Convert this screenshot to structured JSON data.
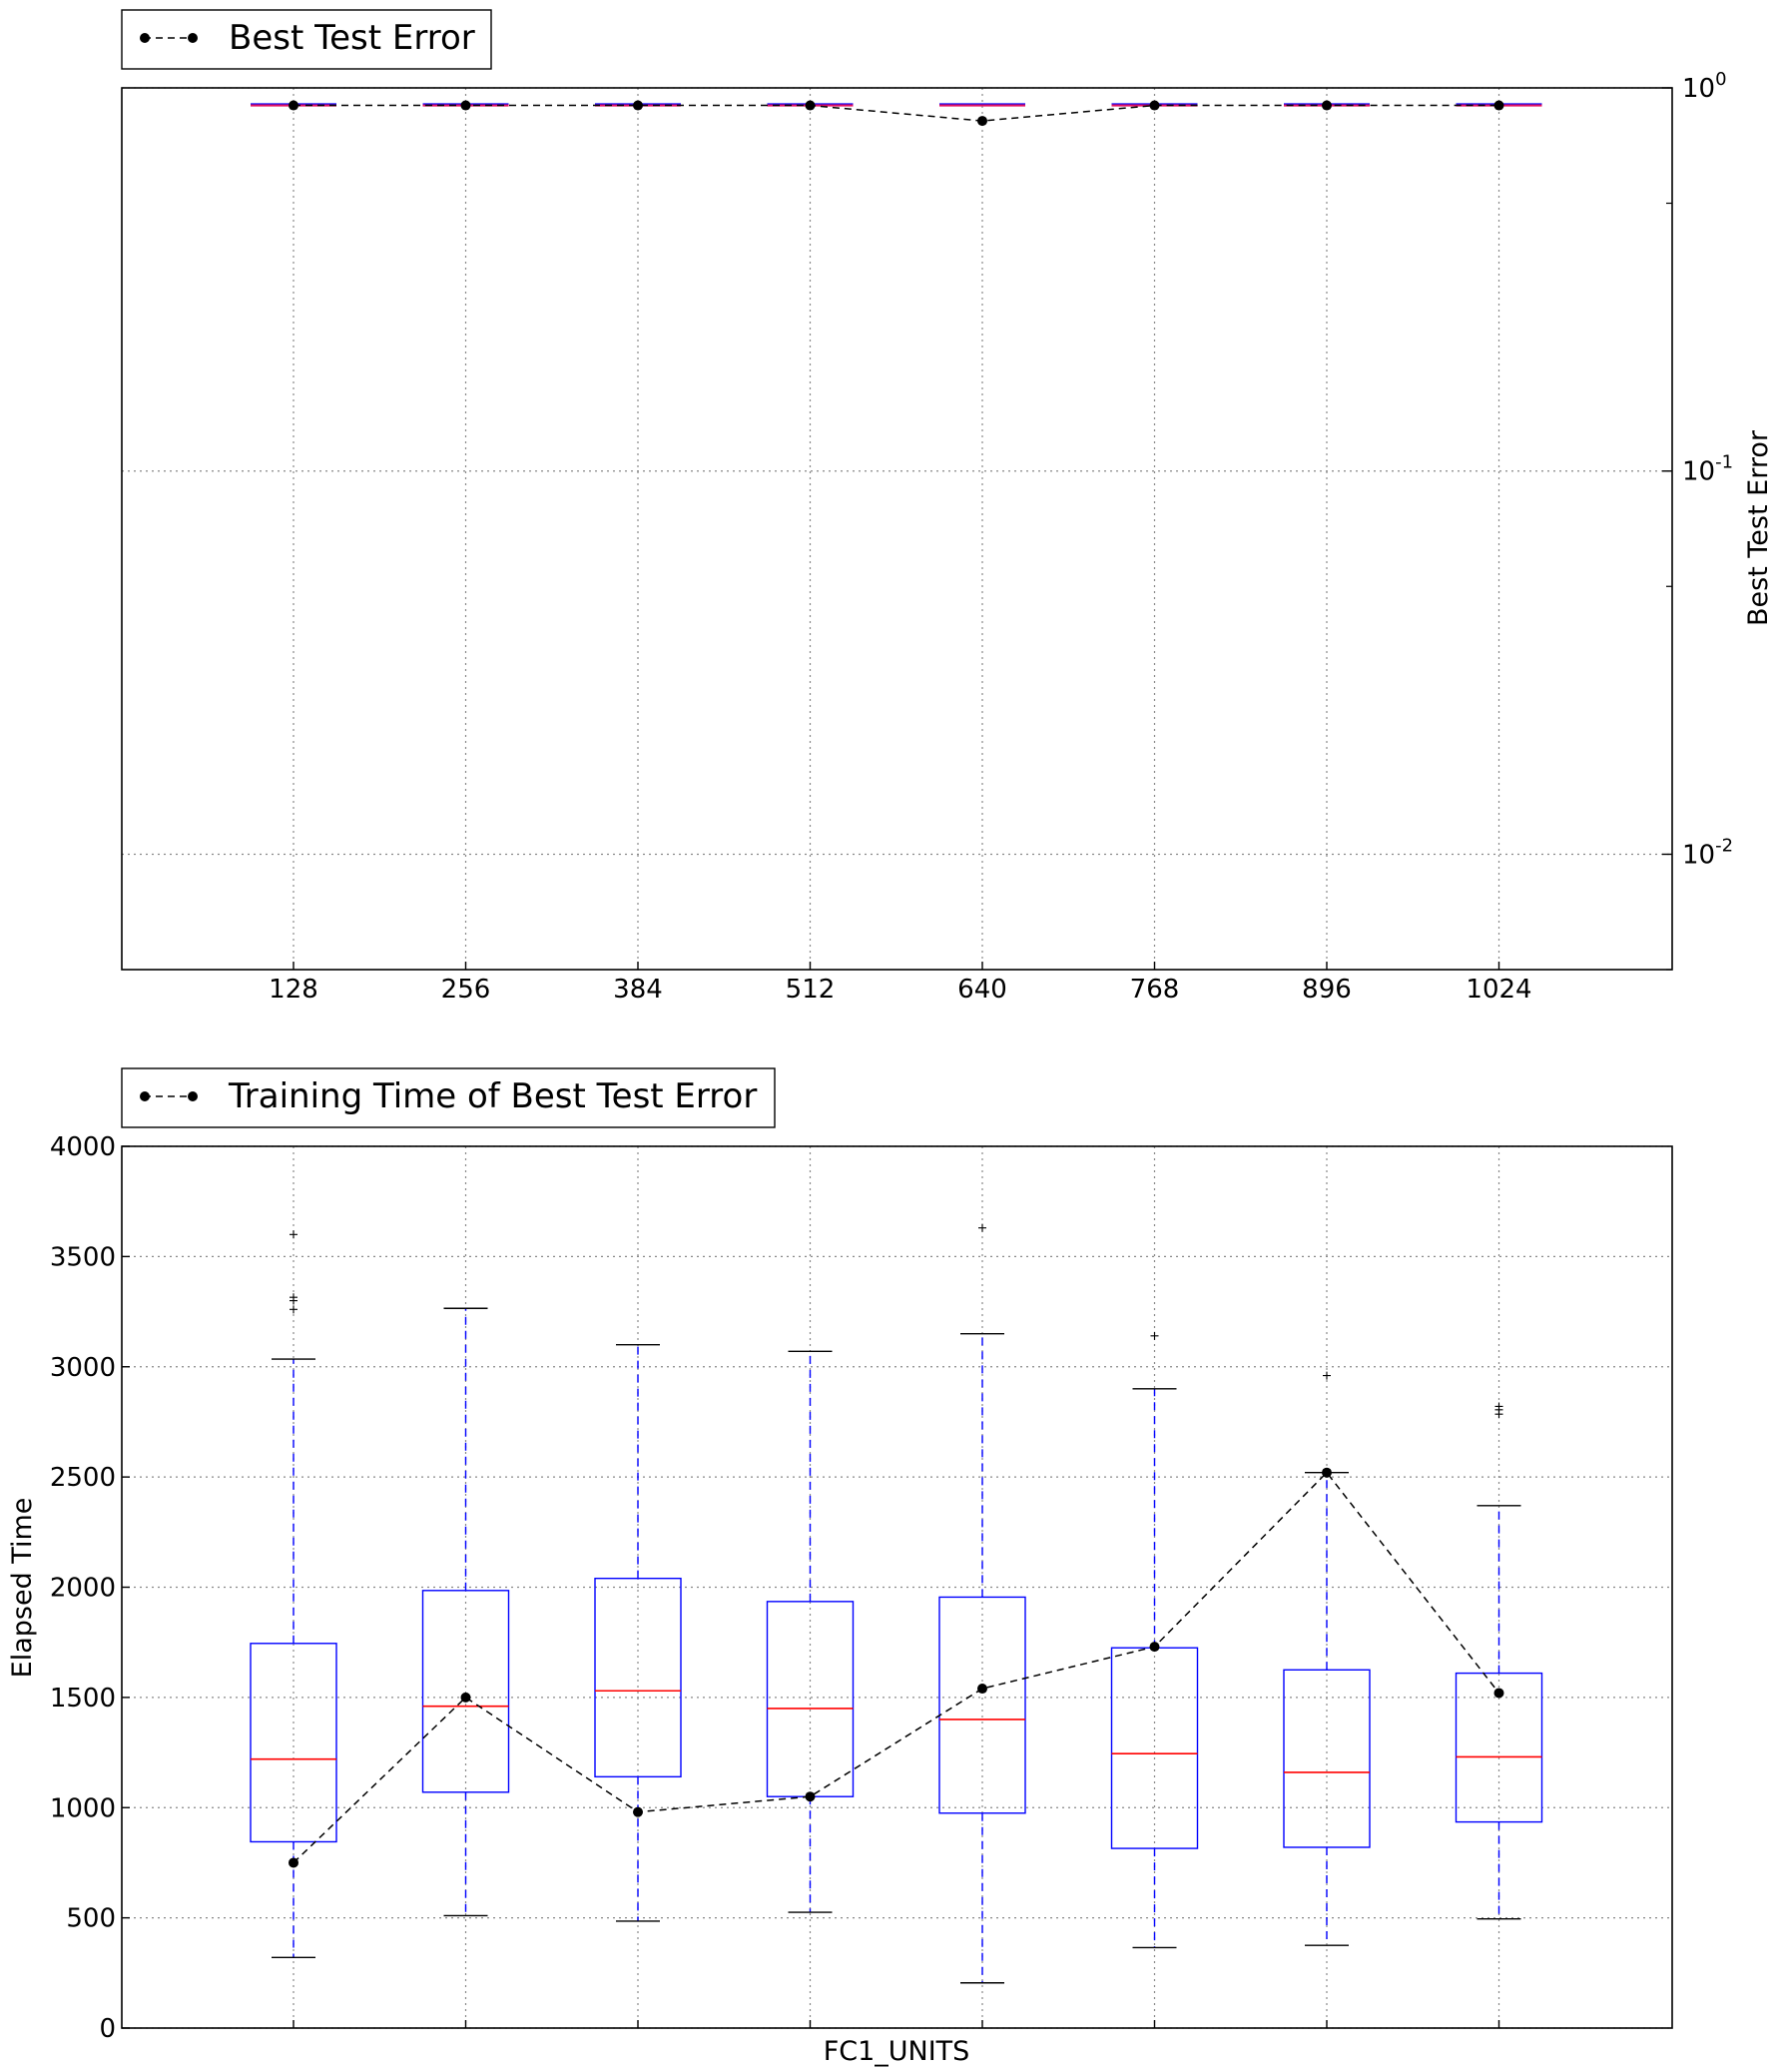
{
  "chart_data": [
    {
      "type": "box",
      "ylabel": "Best Test Error",
      "yscale": "log",
      "ylim": [
        0.005,
        1.0
      ],
      "yticks": [
        {
          "value": 1,
          "base": "10",
          "exp": "0"
        },
        {
          "value": 0.1,
          "base": "10",
          "exp": "-1"
        },
        {
          "value": 0.01,
          "base": "10",
          "exp": "-2"
        }
      ],
      "categories": [
        "128",
        "256",
        "384",
        "512",
        "640",
        "768",
        "896",
        "1024"
      ],
      "legend": {
        "label": "Best Test Error",
        "placement": "above-left"
      },
      "boxes": [
        {
          "category": "128",
          "median": 0.9
        },
        {
          "category": "256",
          "median": 0.9
        },
        {
          "category": "384",
          "median": 0.9
        },
        {
          "category": "512",
          "median": 0.9
        },
        {
          "category": "640",
          "median": 0.9
        },
        {
          "category": "768",
          "median": 0.9
        },
        {
          "category": "896",
          "median": 0.9
        },
        {
          "category": "1024",
          "median": 0.9
        }
      ],
      "best_series": {
        "name": "Best Test Error",
        "values": [
          0.9,
          0.9,
          0.9,
          0.9,
          0.82,
          0.9,
          0.9,
          0.9
        ]
      },
      "grid": true,
      "yaxis_side": "right"
    },
    {
      "type": "box",
      "xlabel": "FC1_UNITS",
      "ylabel": "Elapsed Time",
      "ylim": [
        0,
        4000
      ],
      "yticks": [
        0,
        500,
        1000,
        1500,
        2000,
        2500,
        3000,
        3500,
        4000
      ],
      "legend": {
        "label": "Training Time of Best Test Error",
        "placement": "above-left"
      },
      "boxes": [
        {
          "category": "128",
          "whisker_low": 320,
          "q1": 845,
          "median": 1220,
          "q3": 1745,
          "whisker_high": 3035,
          "outliers": [
            3260,
            3300,
            3315,
            3600
          ]
        },
        {
          "category": "256",
          "whisker_low": 510,
          "q1": 1070,
          "median": 1460,
          "q3": 1985,
          "whisker_high": 3265,
          "outliers": []
        },
        {
          "category": "384",
          "whisker_low": 485,
          "q1": 1140,
          "median": 1530,
          "q3": 2040,
          "whisker_high": 3100,
          "outliers": []
        },
        {
          "category": "512",
          "whisker_low": 525,
          "q1": 1050,
          "median": 1450,
          "q3": 1935,
          "whisker_high": 3070,
          "outliers": []
        },
        {
          "category": "640",
          "whisker_low": 205,
          "q1": 975,
          "median": 1400,
          "q3": 1955,
          "whisker_high": 3150,
          "outliers": [
            3630
          ]
        },
        {
          "category": "768",
          "whisker_low": 365,
          "q1": 815,
          "median": 1245,
          "q3": 1725,
          "whisker_high": 2900,
          "outliers": [
            3140
          ]
        },
        {
          "category": "896",
          "whisker_low": 375,
          "q1": 820,
          "median": 1160,
          "q3": 1625,
          "whisker_high": 2520,
          "outliers": [
            2960
          ]
        },
        {
          "category": "1024",
          "whisker_low": 495,
          "q1": 935,
          "median": 1230,
          "q3": 1610,
          "whisker_high": 2370,
          "outliers": [
            2785,
            2805,
            2820
          ]
        }
      ],
      "best_series": {
        "name": "Training Time of Best Test Error",
        "values": [
          750,
          1500,
          980,
          1050,
          1540,
          1730,
          2520,
          1520
        ]
      },
      "grid": true,
      "yaxis_side": "left"
    }
  ]
}
